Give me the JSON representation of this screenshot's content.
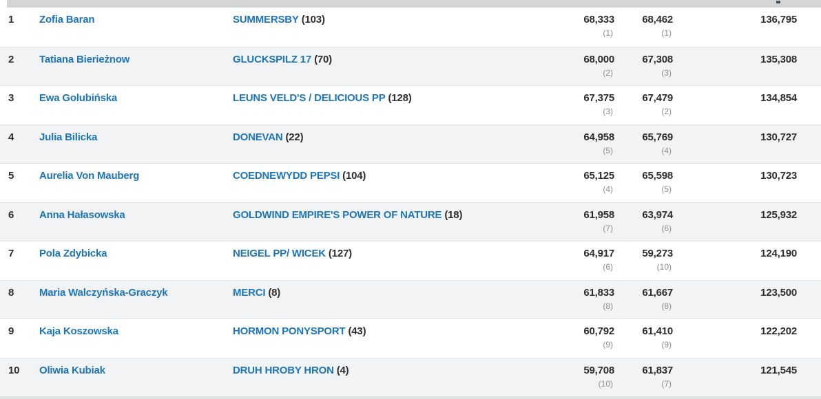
{
  "colors": {
    "link_blue": "#1c75bc",
    "text_dark": "#2d2d2d",
    "subrank_gray": "#8e8e8e",
    "row_alt_bg": "#f2f3f4",
    "header_bar_bg": "#d3d5d6",
    "row_border": "#e2e3e4",
    "bottom_strip": "#dfe3e4"
  },
  "header": {
    "sort_indicator": "sort-arrow-partial"
  },
  "table": {
    "rows": [
      {
        "rank": "1",
        "rider": "Zofia Baran",
        "horse": "SUMMERSBY",
        "horse_no": "(103)",
        "score1": "68,333",
        "score1_rank": "(1)",
        "score2": "68,462",
        "score2_rank": "(1)",
        "total": "136,795"
      },
      {
        "rank": "2",
        "rider": "Tatiana Bierieżnow",
        "horse": "GLUCKSPILZ 17",
        "horse_no": "(70)",
        "score1": "68,000",
        "score1_rank": "(2)",
        "score2": "67,308",
        "score2_rank": "(3)",
        "total": "135,308"
      },
      {
        "rank": "3",
        "rider": "Ewa Golubińska",
        "horse": "LEUNS VELD'S / DELICIOUS PP",
        "horse_no": "(128)",
        "score1": "67,375",
        "score1_rank": "(3)",
        "score2": "67,479",
        "score2_rank": "(2)",
        "total": "134,854"
      },
      {
        "rank": "4",
        "rider": "Julia Bilicka",
        "horse": "DONEVAN",
        "horse_no": "(22)",
        "score1": "64,958",
        "score1_rank": "(5)",
        "score2": "65,769",
        "score2_rank": "(4)",
        "total": "130,727"
      },
      {
        "rank": "5",
        "rider": "Aurelia Von Mauberg",
        "horse": "COEDNEWYDD PEPSI",
        "horse_no": "(104)",
        "score1": "65,125",
        "score1_rank": "(4)",
        "score2": "65,598",
        "score2_rank": "(5)",
        "total": "130,723"
      },
      {
        "rank": "6",
        "rider": "Anna Hałasowska",
        "horse": "GOLDWIND EMPIRE'S POWER OF NATURE",
        "horse_no": "(18)",
        "score1": "61,958",
        "score1_rank": "(7)",
        "score2": "63,974",
        "score2_rank": "(6)",
        "total": "125,932"
      },
      {
        "rank": "7",
        "rider": "Pola Zdybicka",
        "horse": "NEIGEL PP/ WICEK",
        "horse_no": "(127)",
        "score1": "64,917",
        "score1_rank": "(6)",
        "score2": "59,273",
        "score2_rank": "(10)",
        "total": "124,190"
      },
      {
        "rank": "8",
        "rider": "Maria Walczyńska-Graczyk",
        "horse": "MERCI",
        "horse_no": "(8)",
        "score1": "61,833",
        "score1_rank": "(8)",
        "score2": "61,667",
        "score2_rank": "(8)",
        "total": "123,500"
      },
      {
        "rank": "9",
        "rider": "Kaja Koszowska",
        "horse": "HORMON PONYSPORT",
        "horse_no": "(43)",
        "score1": "60,792",
        "score1_rank": "(9)",
        "score2": "61,410",
        "score2_rank": "(9)",
        "total": "122,202"
      },
      {
        "rank": "10",
        "rider": "Oliwia Kubiak",
        "horse": "DRUH HROBY HRON",
        "horse_no": "(4)",
        "score1": "59,708",
        "score1_rank": "(10)",
        "score2": "61,837",
        "score2_rank": "(7)",
        "total": "121,545"
      }
    ]
  }
}
